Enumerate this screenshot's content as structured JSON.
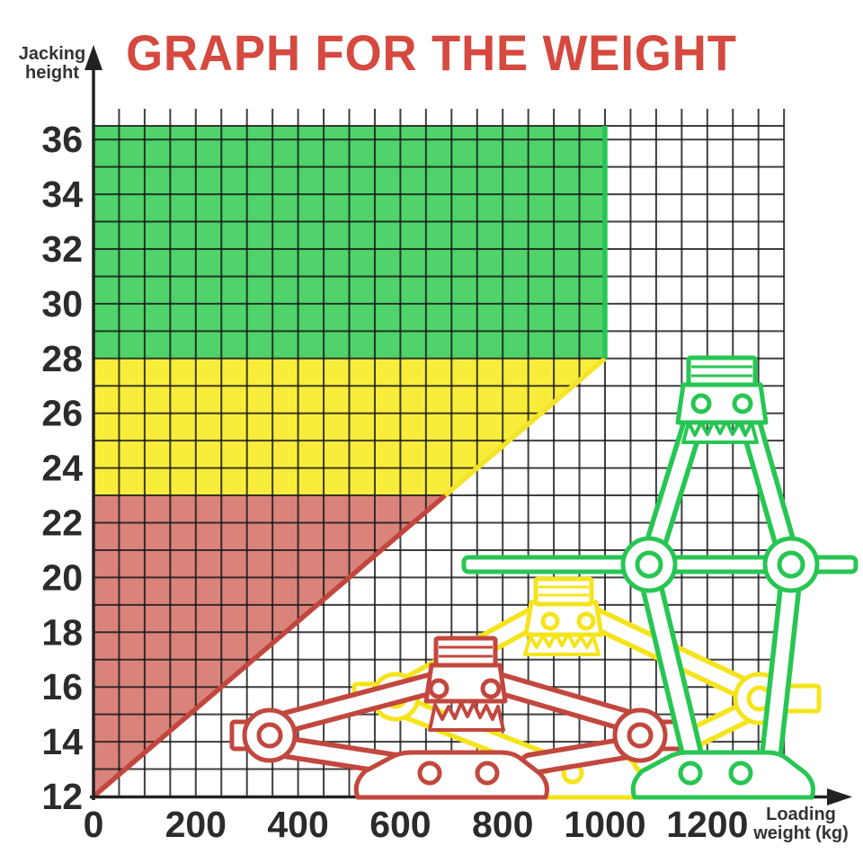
{
  "chart_data": {
    "type": "area",
    "title": "GRAPH FOR THE WEIGHT",
    "title_color": "#d5493f",
    "axes": {
      "x": {
        "label": "Loading weight (kg)",
        "label_lines": [
          "Loading",
          "weight (kg)"
        ],
        "min": 0,
        "max": 1200,
        "grid_max": 1350,
        "tick_step": 200,
        "minor_step": 50,
        "ticks": [
          0,
          200,
          400,
          600,
          800,
          1000,
          1200
        ]
      },
      "y": {
        "label": "Jacking height",
        "label_lines": [
          "Jacking",
          "height"
        ],
        "min": 12,
        "max": 36,
        "grid_top": 36.5,
        "tick_step": 2,
        "minor_step": 1,
        "ticks": [
          12,
          14,
          16,
          18,
          20,
          22,
          24,
          26,
          28,
          30,
          32,
          34,
          36
        ]
      }
    },
    "capacity_line": {
      "from": [
        0,
        12
      ],
      "to": [
        1000,
        28
      ]
    },
    "regions": [
      {
        "name": "danger-zone",
        "color": "#d9837b",
        "points": [
          [
            0,
            12
          ],
          [
            0,
            23
          ],
          [
            687.5,
            23
          ]
        ]
      },
      {
        "name": "caution-zone",
        "color": "#f8ed3b",
        "points": [
          [
            0,
            23
          ],
          [
            0,
            28
          ],
          [
            1000,
            28
          ],
          [
            687.5,
            23
          ]
        ]
      },
      {
        "name": "safe-zone",
        "color": "#4fd36a",
        "points": [
          [
            0,
            28
          ],
          [
            0,
            36.5
          ],
          [
            1000,
            36.5
          ],
          [
            1000,
            28
          ]
        ]
      }
    ],
    "region_edges": [
      {
        "name": "danger-edge",
        "color": "#c2463d",
        "points": [
          [
            0,
            12
          ],
          [
            687.5,
            23
          ]
        ]
      },
      {
        "name": "caution-edge",
        "color": "#f3e32a",
        "points": [
          [
            687.5,
            23
          ],
          [
            1000,
            28
          ]
        ]
      },
      {
        "name": "safe-edge",
        "color": "#28c657",
        "points": [
          [
            1000,
            28
          ],
          [
            1000,
            36.5
          ]
        ]
      }
    ],
    "illustrations": [
      {
        "name": "scissor-jack-collapsed",
        "color": "#c2473e"
      },
      {
        "name": "scissor-jack-mid",
        "color": "#f5e41c"
      },
      {
        "name": "scissor-jack-extended",
        "color": "#27c653"
      }
    ],
    "palette": {
      "grid": "#161616",
      "axis": "#222222",
      "tick_text": "#2b2b2b",
      "caption_text": "#333333"
    }
  }
}
